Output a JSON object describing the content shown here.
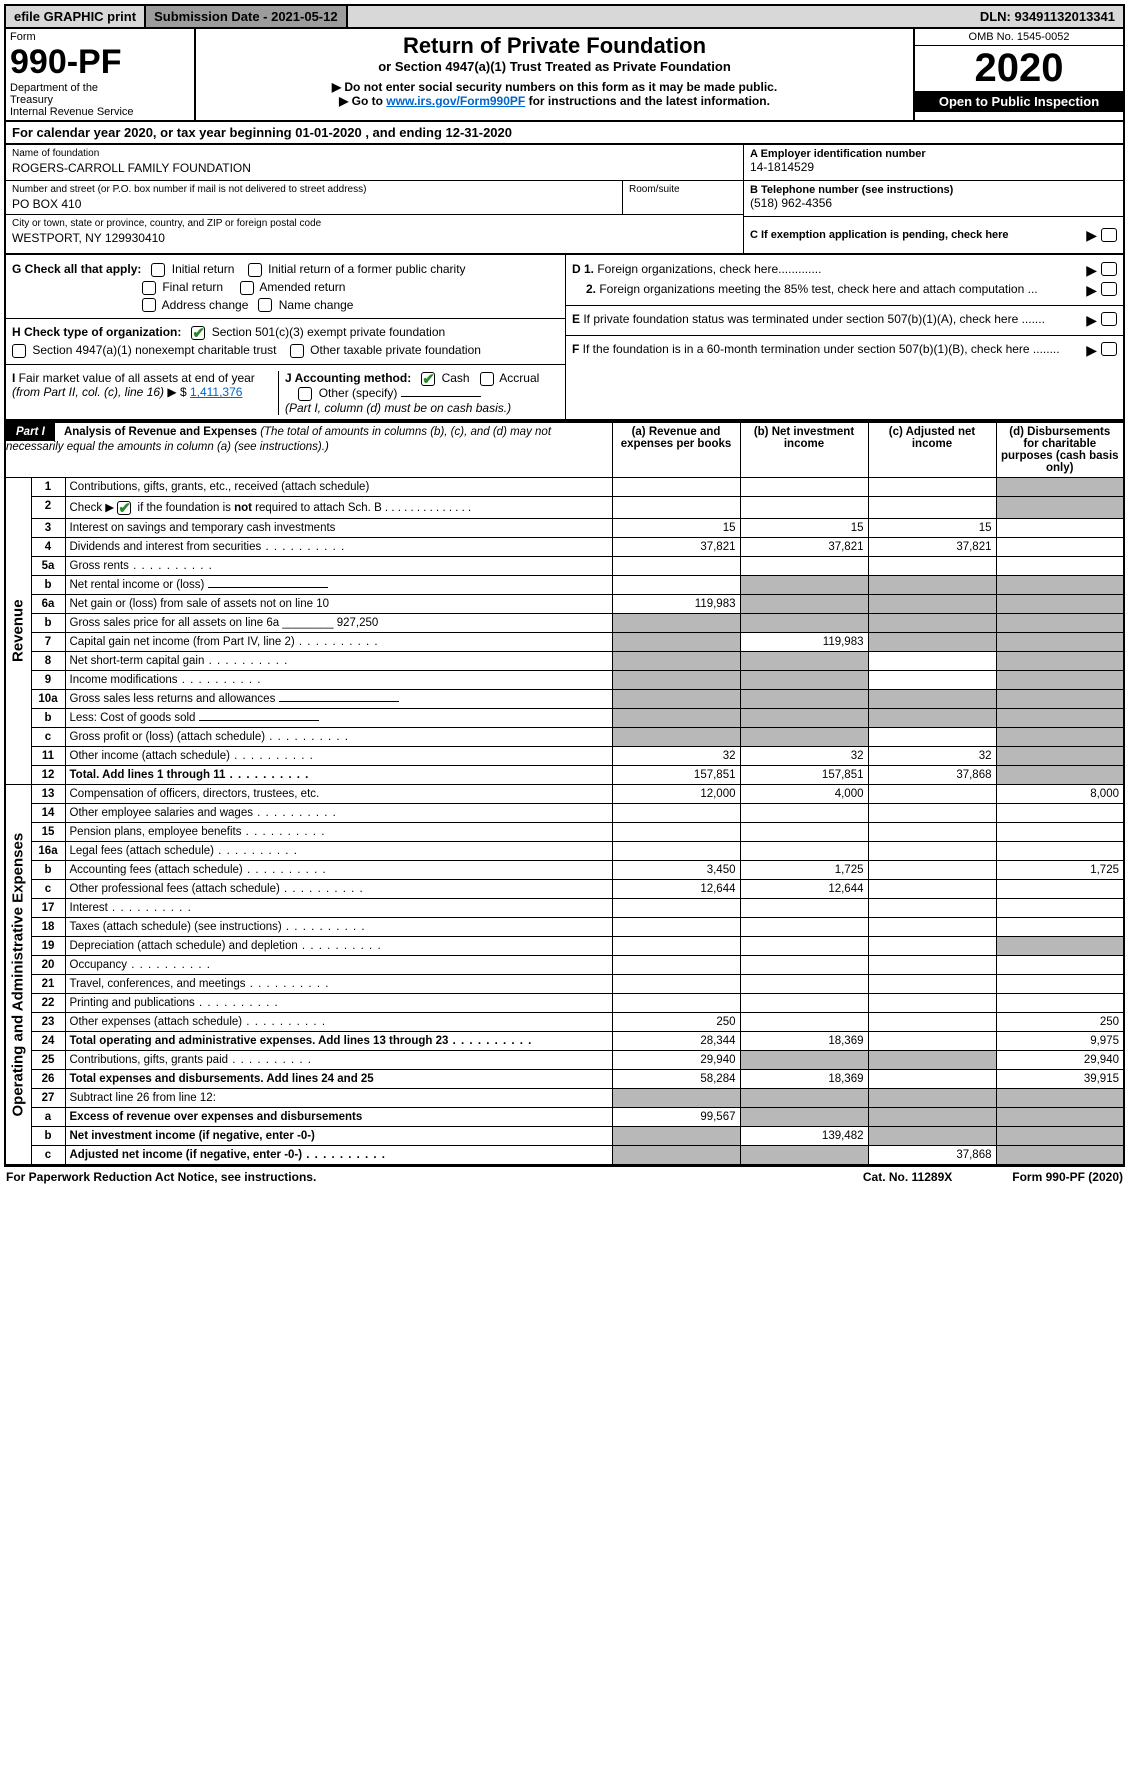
{
  "topbar": {
    "efile": "efile GRAPHIC print",
    "submission": "Submission Date - 2021-05-12",
    "dln": "DLN: 93491132013341"
  },
  "header": {
    "form_word": "Form",
    "form_num": "990-PF",
    "dept": "Department of the Treasury\nInternal Revenue Service",
    "title": "Return of Private Foundation",
    "subtitle": "or Section 4947(a)(1) Trust Treated as Private Foundation",
    "note1": "▶ Do not enter social security numbers on this form as it may be made public.",
    "note2_pre": "▶ Go to ",
    "note2_link": "www.irs.gov/Form990PF",
    "note2_post": " for instructions and the latest information.",
    "omb": "OMB No. 1545-0052",
    "year": "2020",
    "inspect": "Open to Public Inspection"
  },
  "calendar": "For calendar year 2020, or tax year beginning 01-01-2020               , and ending 12-31-2020",
  "entity": {
    "name_label": "Name of foundation",
    "name": "ROGERS-CARROLL FAMILY FOUNDATION",
    "addr_label": "Number and street (or P.O. box number if mail is not delivered to street address)",
    "addr": "PO BOX 410",
    "room_label": "Room/suite",
    "city_label": "City or town, state or province, country, and ZIP or foreign postal code",
    "city": "WESTPORT, NY  129930410",
    "ein_label": "A Employer identification number",
    "ein": "14-1814529",
    "phone_label": "B Telephone number (see instructions)",
    "phone": "(518) 962-4356",
    "c_label": "C  If exemption application is pending, check here"
  },
  "checks": {
    "g_label": "G Check all that apply:",
    "g_opts": [
      "Initial return",
      "Initial return of a former public charity",
      "Final return",
      "Amended return",
      "Address change",
      "Name change"
    ],
    "h_label": "H Check type of organization:",
    "h_opts": [
      "Section 501(c)(3) exempt private foundation",
      "Section 4947(a)(1) nonexempt charitable trust",
      "Other taxable private foundation"
    ],
    "i_label": "I Fair market value of all assets at end of year (from Part II, col. (c), line 16) ▶ $",
    "i_val": "1,411,376",
    "j_label": "J Accounting method:",
    "j_opts": [
      "Cash",
      "Accrual",
      "Other (specify)"
    ],
    "j_note": "(Part I, column (d) must be on cash basis.)",
    "d1": "D 1. Foreign organizations, check here.............",
    "d2": "2. Foreign organizations meeting the 85% test, check here and attach computation ...",
    "e": "E  If private foundation status was terminated under section 507(b)(1)(A), check here .......",
    "f": "F  If the foundation is in a 60-month termination under section 507(b)(1)(B), check here ........"
  },
  "part1": {
    "label": "Part I",
    "head_desc": "Analysis of Revenue and Expenses (The total of amounts in columns (b), (c), and (d) may not necessarily equal the amounts in column (a) (see instructions).)",
    "col_a": "(a) Revenue and expenses per books",
    "col_b": "(b) Net investment income",
    "col_c": "(c) Adjusted net income",
    "col_d": "(d) Disbursements for charitable purposes (cash basis only)",
    "sec_rev": "Revenue",
    "sec_exp": "Operating and Administrative Expenses"
  },
  "rows": [
    {
      "n": "1",
      "d": "Contributions, gifts, grants, etc., received (attach schedule)",
      "a": "",
      "b": "",
      "c": "",
      "sd": true
    },
    {
      "n": "2",
      "d": "Check ▶ ✔ if the foundation is not required to attach Sch. B",
      "a": "",
      "b": "",
      "c": "",
      "sd": true,
      "checkline": true
    },
    {
      "n": "3",
      "d": "Interest on savings and temporary cash investments",
      "a": "15",
      "b": "15",
      "c": "15",
      "sd": false
    },
    {
      "n": "4",
      "d": "Dividends and interest from securities",
      "a": "37,821",
      "b": "37,821",
      "c": "37,821",
      "sd": false,
      "dots": true
    },
    {
      "n": "5a",
      "d": "Gross rents",
      "a": "",
      "b": "",
      "c": "",
      "sd": false,
      "dots": true
    },
    {
      "n": "b",
      "d": "Net rental income or (loss)",
      "a": "",
      "b": "",
      "c": "",
      "sd": true,
      "sb": true,
      "sc": true,
      "underline": true
    },
    {
      "n": "6a",
      "d": "Net gain or (loss) from sale of assets not on line 10",
      "a": "119,983",
      "b": "",
      "c": "",
      "sb": true,
      "sc": true,
      "sd": true
    },
    {
      "n": "b",
      "d": "Gross sales price for all assets on line 6a ________ 927,250",
      "a": "",
      "b": "",
      "c": "",
      "sa": true,
      "sb": true,
      "sc": true,
      "sd": true
    },
    {
      "n": "7",
      "d": "Capital gain net income (from Part IV, line 2)",
      "a": "",
      "b": "119,983",
      "c": "",
      "sa": true,
      "sc": true,
      "sd": true,
      "dots": true
    },
    {
      "n": "8",
      "d": "Net short-term capital gain",
      "a": "",
      "b": "",
      "c": "",
      "sa": true,
      "sb": true,
      "sd": true,
      "dots": true
    },
    {
      "n": "9",
      "d": "Income modifications",
      "a": "",
      "b": "",
      "c": "",
      "sa": true,
      "sb": true,
      "sd": true,
      "dots": true
    },
    {
      "n": "10a",
      "d": "Gross sales less returns and allowances",
      "a": "",
      "b": "",
      "c": "",
      "sa": true,
      "sb": true,
      "sc": true,
      "sd": true,
      "underline": true
    },
    {
      "n": "b",
      "d": "Less: Cost of goods sold",
      "a": "",
      "b": "",
      "c": "",
      "sa": true,
      "sb": true,
      "sc": true,
      "sd": true,
      "dots": true,
      "underline": true
    },
    {
      "n": "c",
      "d": "Gross profit or (loss) (attach schedule)",
      "a": "",
      "b": "",
      "c": "",
      "sa": true,
      "sb": true,
      "sd": true,
      "dots": true
    },
    {
      "n": "11",
      "d": "Other income (attach schedule)",
      "a": "32",
      "b": "32",
      "c": "32",
      "sd": true,
      "dots": true
    },
    {
      "n": "12",
      "d": "Total. Add lines 1 through 11",
      "a": "157,851",
      "b": "157,851",
      "c": "37,868",
      "sd": true,
      "bold": true,
      "dots": true
    }
  ],
  "exp_rows": [
    {
      "n": "13",
      "d": "Compensation of officers, directors, trustees, etc.",
      "a": "12,000",
      "b": "4,000",
      "c": "",
      "dd": "8,000"
    },
    {
      "n": "14",
      "d": "Other employee salaries and wages",
      "dots": true
    },
    {
      "n": "15",
      "d": "Pension plans, employee benefits",
      "dots": true
    },
    {
      "n": "16a",
      "d": "Legal fees (attach schedule)",
      "dots": true
    },
    {
      "n": "b",
      "d": "Accounting fees (attach schedule)",
      "a": "3,450",
      "b": "1,725",
      "dd": "1,725",
      "dots": true
    },
    {
      "n": "c",
      "d": "Other professional fees (attach schedule)",
      "a": "12,644",
      "b": "12,644",
      "dots": true
    },
    {
      "n": "17",
      "d": "Interest",
      "dots": true
    },
    {
      "n": "18",
      "d": "Taxes (attach schedule) (see instructions)",
      "dots": true
    },
    {
      "n": "19",
      "d": "Depreciation (attach schedule) and depletion",
      "sd": true,
      "dots": true
    },
    {
      "n": "20",
      "d": "Occupancy",
      "dots": true
    },
    {
      "n": "21",
      "d": "Travel, conferences, and meetings",
      "dots": true
    },
    {
      "n": "22",
      "d": "Printing and publications",
      "dots": true
    },
    {
      "n": "23",
      "d": "Other expenses (attach schedule)",
      "a": "250",
      "dd": "250",
      "dots": true
    },
    {
      "n": "24",
      "d": "Total operating and administrative expenses. Add lines 13 through 23",
      "a": "28,344",
      "b": "18,369",
      "dd": "9,975",
      "bold": true,
      "dots": true
    },
    {
      "n": "25",
      "d": "Contributions, gifts, grants paid",
      "a": "29,940",
      "dd": "29,940",
      "sb": true,
      "sc": true,
      "dots": true
    },
    {
      "n": "26",
      "d": "Total expenses and disbursements. Add lines 24 and 25",
      "a": "58,284",
      "b": "18,369",
      "dd": "39,915",
      "bold": true
    },
    {
      "n": "27",
      "d": "Subtract line 26 from line 12:",
      "sa": true,
      "sb": true,
      "sc": true,
      "sd": true
    },
    {
      "n": "a",
      "d": "Excess of revenue over expenses and disbursements",
      "a": "99,567",
      "sb": true,
      "sc": true,
      "sd": true,
      "bold": true
    },
    {
      "n": "b",
      "d": "Net investment income (if negative, enter -0-)",
      "b": "139,482",
      "sa": true,
      "sc": true,
      "sd": true,
      "bold": true
    },
    {
      "n": "c",
      "d": "Adjusted net income (if negative, enter -0-)",
      "c": "37,868",
      "sa": true,
      "sb": true,
      "sd": true,
      "bold": true,
      "dots": true
    }
  ],
  "footer": {
    "left": "For Paperwork Reduction Act Notice, see instructions.",
    "mid": "Cat. No. 11289X",
    "right": "Form 990-PF (2020)"
  }
}
